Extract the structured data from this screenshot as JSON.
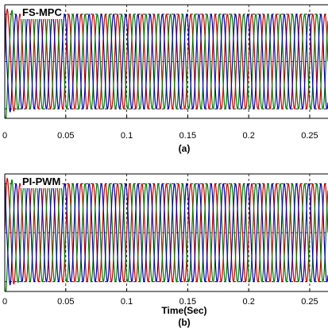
{
  "chart_data": [
    {
      "type": "line",
      "title": "FS-MPC",
      "caption": "(a)",
      "xlabel": "",
      "ylabel": "",
      "xlim": [
        0,
        0.265
      ],
      "ylim": [
        -1.2,
        1.2
      ],
      "xticks": [
        0,
        0.05,
        0.1,
        0.15,
        0.2,
        0.25
      ],
      "xtick_labels": [
        "0",
        "0.05",
        "0.1",
        "0.15",
        "0.2",
        "0.25"
      ],
      "grid": true,
      "frequency_hz": 100,
      "amplitude": 1.0,
      "series": [
        {
          "phase_deg": 0,
          "color": "#cc0000"
        },
        {
          "phase_deg": -120,
          "color": "#007a00"
        },
        {
          "phase_deg": 120,
          "color": "#0000aa"
        }
      ]
    },
    {
      "type": "line",
      "title": "PI-PWM",
      "caption": "(b)",
      "xlabel": "Time(Sec)",
      "ylabel": "",
      "xlim": [
        0,
        0.265
      ],
      "ylim": [
        -1.2,
        1.2
      ],
      "xticks": [
        0,
        0.05,
        0.1,
        0.15,
        0.2,
        0.25
      ],
      "xtick_labels": [
        "0",
        "0.05",
        "0.1",
        "0.15",
        "0.2",
        "0.25"
      ],
      "grid": true,
      "frequency_hz": 100,
      "amplitude": 1.0,
      "series": [
        {
          "phase_deg": 0,
          "color": "#cc0000"
        },
        {
          "phase_deg": -120,
          "color": "#007a00"
        },
        {
          "phase_deg": 120,
          "color": "#0000aa"
        }
      ]
    }
  ]
}
